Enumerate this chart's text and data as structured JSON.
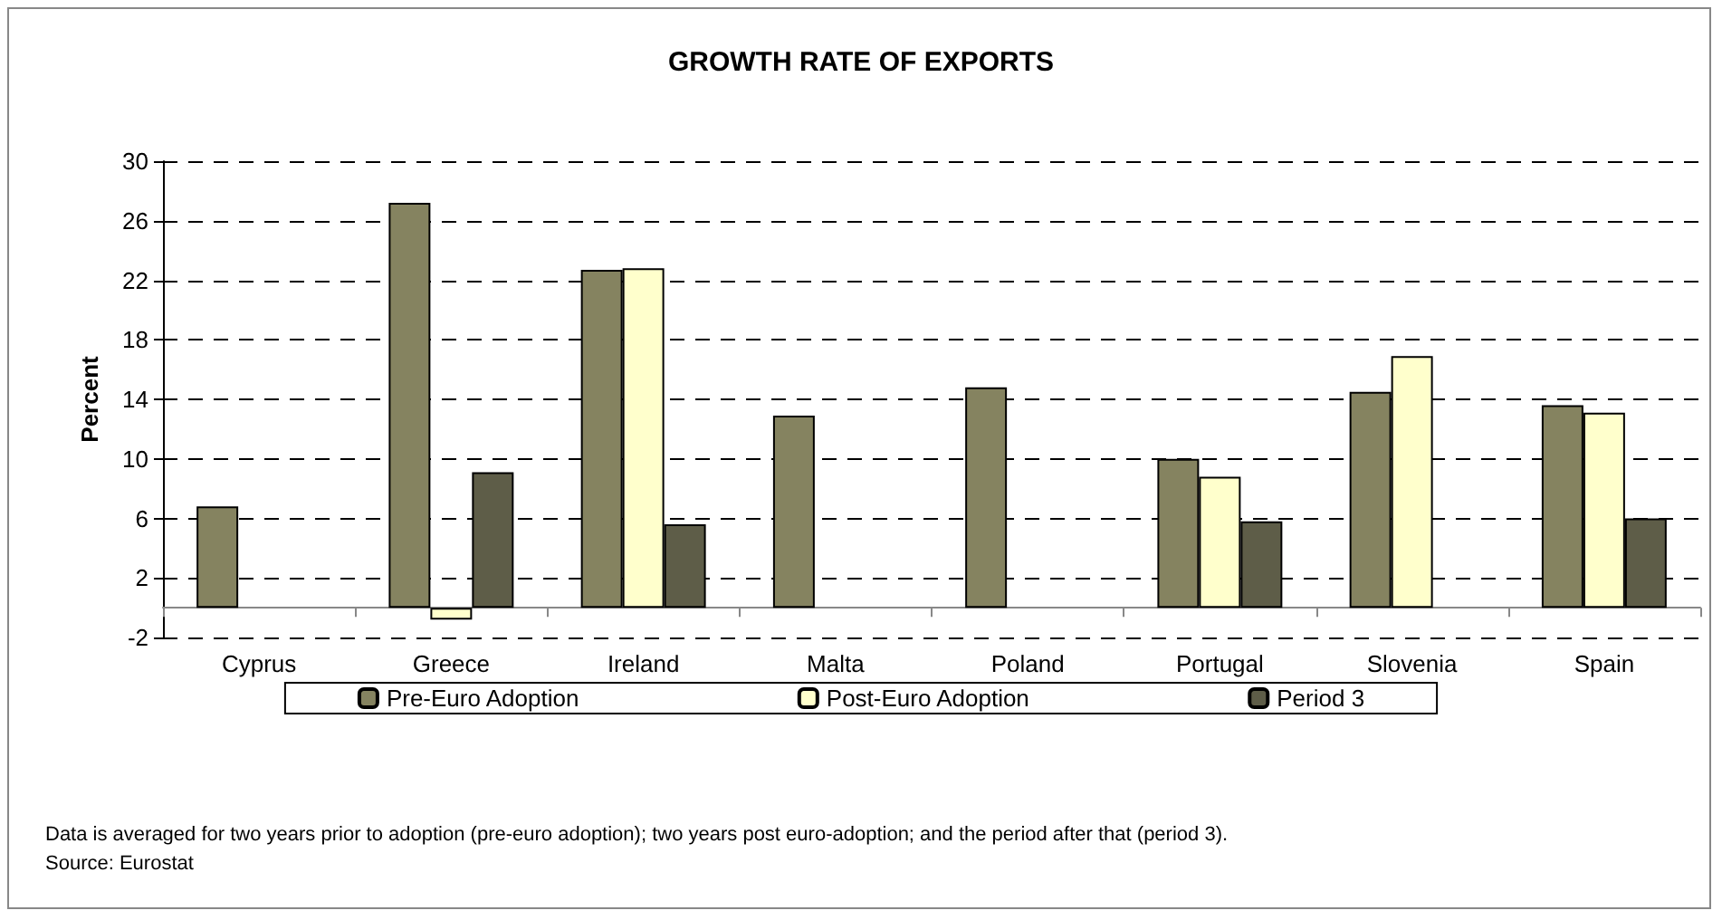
{
  "chart_data": {
    "type": "bar",
    "title": "GROWTH RATE OF EXPORTS",
    "ylabel": "Percent",
    "categories": [
      "Cyprus",
      "Greece",
      "Ireland",
      "Malta",
      "Poland",
      "Portugal",
      "Slovenia",
      "Spain"
    ],
    "series": [
      {
        "name": "Pre-Euro Adoption",
        "color": "#858360",
        "values": [
          6.8,
          27.2,
          22.7,
          12.9,
          14.8,
          10.0,
          14.5,
          13.6
        ]
      },
      {
        "name": "Post-Euro Adoption",
        "color": "#ffffcc",
        "values": [
          null,
          -0.8,
          22.8,
          null,
          null,
          8.8,
          16.9,
          13.1
        ]
      },
      {
        "name": "Period 3",
        "color": "#5e5d48",
        "values": [
          null,
          9.1,
          5.6,
          null,
          null,
          5.8,
          null,
          6.0
        ]
      }
    ],
    "ylim": [
      -2,
      30
    ],
    "yticks": [
      -2,
      2,
      6,
      10,
      14,
      18,
      22,
      26,
      30
    ],
    "grid": "y",
    "legend": "bottom",
    "annotations": [
      "Data is averaged for two years prior to adoption (pre-euro adoption); two years post euro-adoption; and the period after that (period 3).",
      "Source: Eurostat"
    ]
  }
}
